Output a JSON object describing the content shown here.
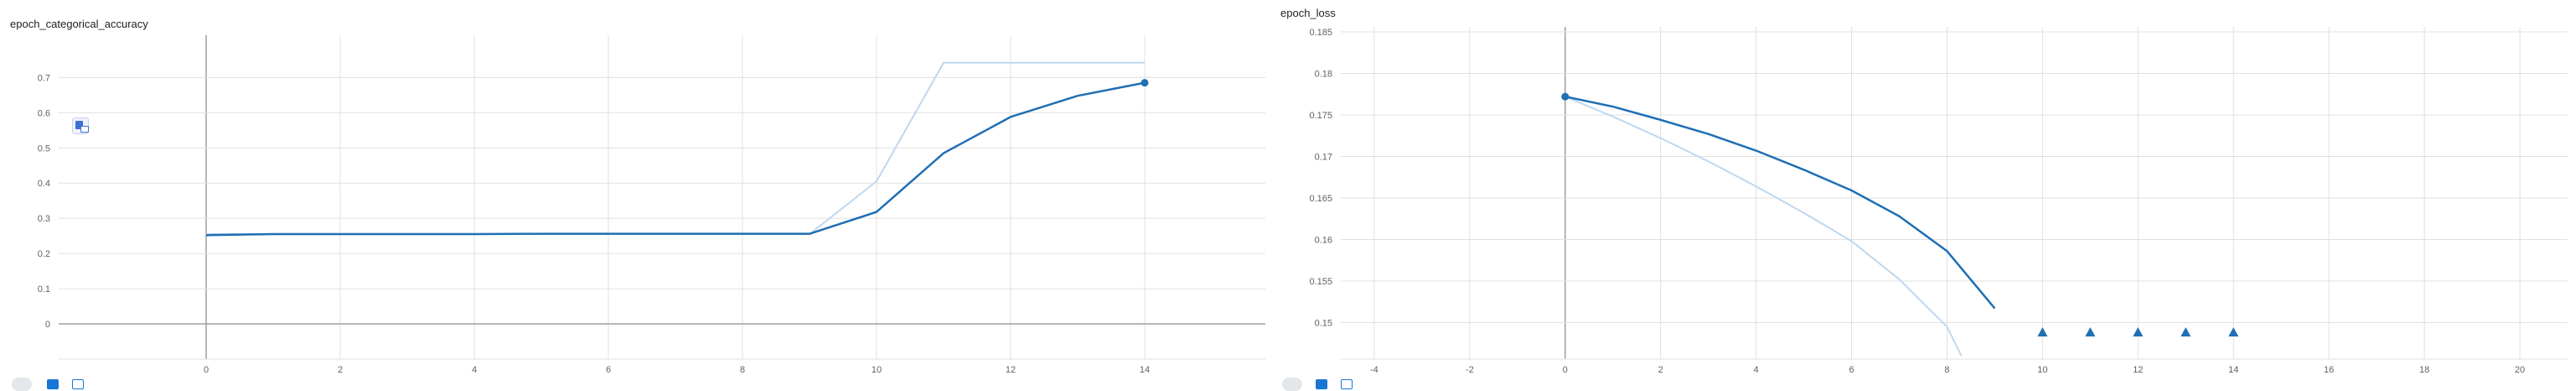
{
  "colors": {
    "smoothed": "#1f6fb4",
    "raw": "#bfd7ee",
    "grid": "#e0e0e0",
    "axis": "#9e9e9e"
  },
  "chart_data": [
    {
      "type": "line",
      "title": "epoch_categorical_accuracy",
      "xlim": [
        -2.2,
        15.8
      ],
      "ylim": [
        -0.1,
        0.82
      ],
      "xticks": [
        0,
        2,
        4,
        6,
        8,
        10,
        12,
        14
      ],
      "yticks": [
        0,
        0.1,
        0.2,
        0.3,
        0.4,
        0.5,
        0.6,
        0.7
      ],
      "grid": true,
      "series": [
        {
          "style": "raw",
          "x": [
            0,
            1,
            2,
            3,
            4,
            5,
            6,
            7,
            8,
            9,
            10,
            11,
            12,
            13,
            14
          ],
          "y": [
            0.255,
            0.255,
            0.255,
            0.255,
            0.255,
            0.255,
            0.255,
            0.255,
            0.255,
            0.255,
            0.405,
            0.742,
            0.742,
            0.742,
            0.742
          ]
        },
        {
          "style": "smoothed",
          "x": [
            0,
            1,
            2,
            3,
            4,
            5,
            6,
            7,
            8,
            9,
            10,
            11,
            12,
            13,
            14
          ],
          "y": [
            0.252,
            0.255,
            0.255,
            0.255,
            0.255,
            0.256,
            0.256,
            0.256,
            0.256,
            0.256,
            0.318,
            0.485,
            0.588,
            0.648,
            0.685
          ]
        }
      ],
      "highlight_point": {
        "x": 14,
        "y": 0.685
      }
    },
    {
      "type": "line",
      "title": "epoch_loss",
      "xlim": [
        -4.7,
        21.0
      ],
      "ylim": [
        0.1456,
        0.1856
      ],
      "xticks": [
        -4,
        -2,
        0,
        2,
        4,
        6,
        8,
        10,
        12,
        14,
        16,
        18,
        20
      ],
      "yticks": [
        0.15,
        0.155,
        0.16,
        0.165,
        0.17,
        0.175,
        0.18,
        0.185
      ],
      "grid": true,
      "series": [
        {
          "style": "raw",
          "x": [
            0,
            1,
            2,
            3,
            4,
            5,
            6,
            7,
            8,
            8.3
          ],
          "y": [
            0.1772,
            0.1748,
            0.1722,
            0.1694,
            0.1664,
            0.1632,
            0.1598,
            0.1552,
            0.1495,
            0.146
          ]
        },
        {
          "style": "smoothed",
          "x": [
            0,
            1,
            2,
            3,
            4,
            5,
            6,
            7,
            8,
            9
          ],
          "y": [
            0.1772,
            0.176,
            0.1744,
            0.1727,
            0.1707,
            0.1684,
            0.1659,
            0.1628,
            0.1586,
            0.1517
          ]
        }
      ],
      "highlight_point": {
        "x": 0,
        "y": 0.1772
      },
      "out_of_range_markers_x": [
        10,
        11,
        12,
        13,
        14
      ]
    }
  ]
}
